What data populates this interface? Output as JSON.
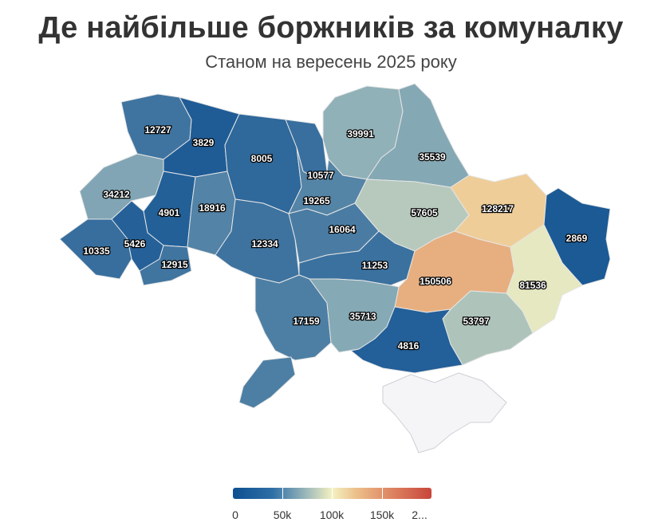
{
  "title": "Де найбільше боржників за комуналку",
  "subtitle": "Станом на вересень 2025 року",
  "legend": {
    "colors": [
      "#0d4f91",
      "#8fb0b8",
      "#f4f1c2",
      "#ecc08b",
      "#c8453b"
    ],
    "min": 0,
    "max": 200000,
    "tick_labels": [
      "0",
      "50k",
      "100k",
      "150k",
      "2..."
    ]
  },
  "regions": [
    {
      "id": "volyn",
      "value": 12727,
      "label": "12727"
    },
    {
      "id": "rivne",
      "value": 3829,
      "label": "3829"
    },
    {
      "id": "zhytomyr",
      "value": 8005,
      "label": "8005"
    },
    {
      "id": "kyiv-city",
      "value": 10577,
      "label": "10577"
    },
    {
      "id": "chernihiv",
      "value": 39991,
      "label": "39991"
    },
    {
      "id": "sumy",
      "value": 35539,
      "label": "35539"
    },
    {
      "id": "lviv",
      "value": 34212,
      "label": "34212"
    },
    {
      "id": "ternopil",
      "value": 4901,
      "label": "4901"
    },
    {
      "id": "khmelnytskyi",
      "value": 18916,
      "label": "18916"
    },
    {
      "id": "kyiv-oblast",
      "value": 19265,
      "label": "19265"
    },
    {
      "id": "poltava",
      "value": 57605,
      "label": "57605"
    },
    {
      "id": "kharkiv",
      "value": 128217,
      "label": "128217"
    },
    {
      "id": "luhansk",
      "value": 2869,
      "label": "2869"
    },
    {
      "id": "zakarpattia",
      "value": 10335,
      "label": "10335"
    },
    {
      "id": "ivano-frankivsk",
      "value": 5426,
      "label": "5426"
    },
    {
      "id": "chernivtsi",
      "value": 12915,
      "label": "12915"
    },
    {
      "id": "vinnytsia",
      "value": 12334,
      "label": "12334"
    },
    {
      "id": "cherkasy",
      "value": 16064,
      "label": "16064"
    },
    {
      "id": "kirovohrad",
      "value": 11253,
      "label": "11253"
    },
    {
      "id": "dnipropetrovsk",
      "value": 150506,
      "label": "150506"
    },
    {
      "id": "donetsk",
      "value": 81536,
      "label": "81536"
    },
    {
      "id": "odesa",
      "value": 17159,
      "label": "17159"
    },
    {
      "id": "mykolaiv",
      "value": 35713,
      "label": "35713"
    },
    {
      "id": "zaporizhzhia",
      "value": 53797,
      "label": "53797"
    },
    {
      "id": "kherson",
      "value": 4816,
      "label": "4816"
    },
    {
      "id": "crimea",
      "value": null,
      "label": ""
    }
  ]
}
